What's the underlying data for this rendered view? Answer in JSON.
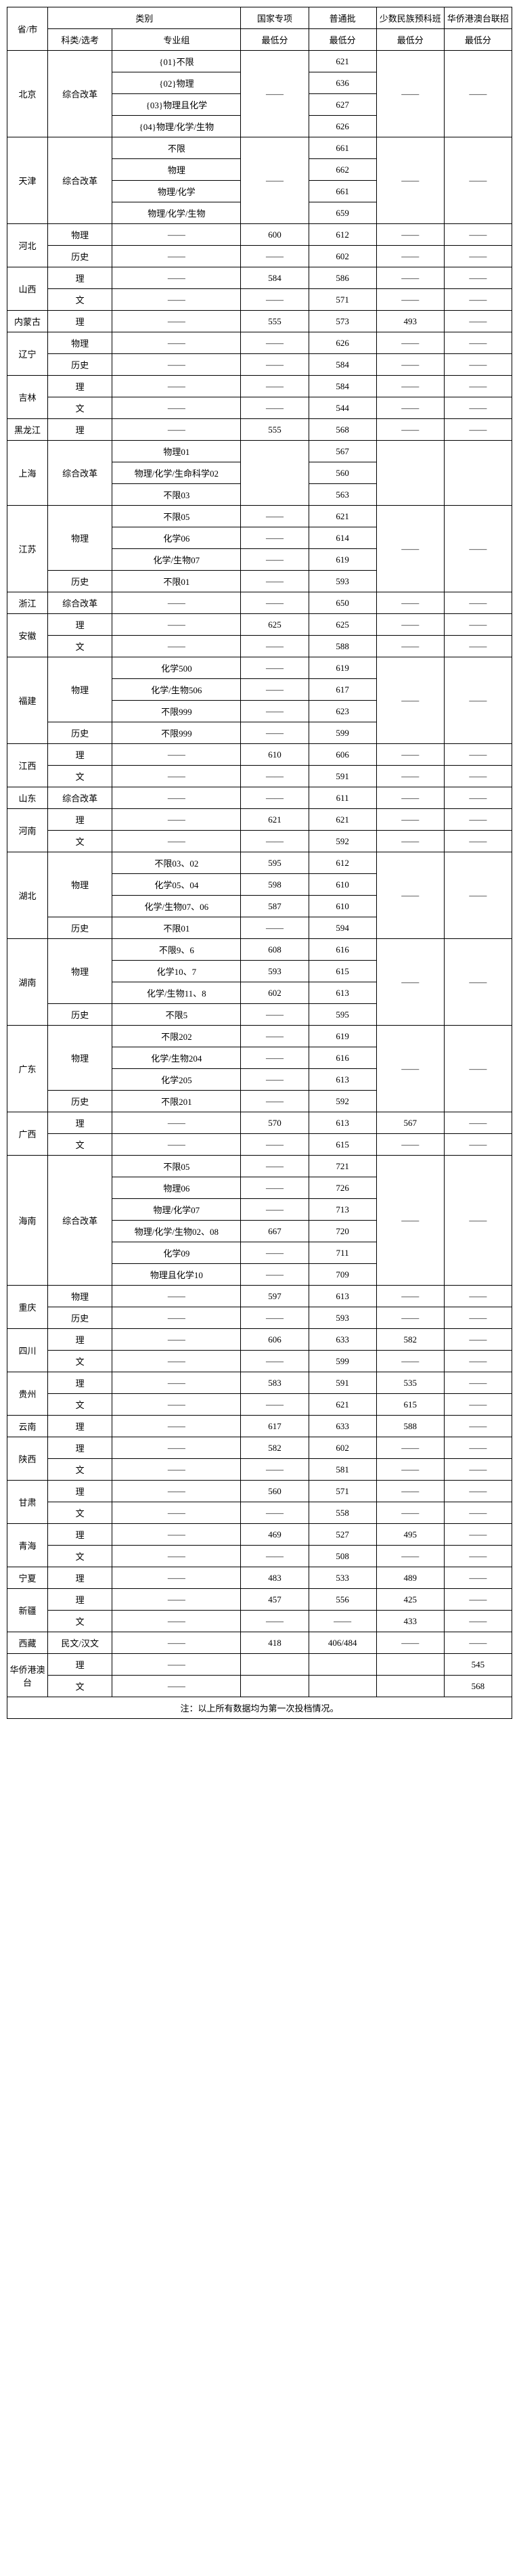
{
  "headers": {
    "province": "省/市",
    "category": "类别",
    "subject": "科类/选考",
    "group": "专业组",
    "national": "国家专项",
    "normal": "普通批",
    "minority": "少数民族预科班",
    "overseas": "华侨港澳台联招",
    "min": "最低分"
  },
  "dash": "——",
  "footnote": "注：以上所有数据均为第一次投档情况。",
  "rows": [
    {
      "prov": "北京",
      "prov_rs": 4,
      "cat1": "综合改革",
      "cat1_rs": 4,
      "cat2": "{01}不限",
      "c1": "——",
      "c1_rs": 4,
      "c2": "621",
      "c3": "——",
      "c3_rs": 4,
      "c4": "——",
      "c4_rs": 4
    },
    {
      "cat2": "{02}物理",
      "c2": "636"
    },
    {
      "cat2": "{03}物理且化学",
      "c2": "627"
    },
    {
      "cat2": "{04}物理/化学/生物",
      "c2": "626"
    },
    {
      "prov": "天津",
      "prov_rs": 4,
      "cat1": "综合改革",
      "cat1_rs": 4,
      "cat2": "不限",
      "c1": "——",
      "c1_rs": 4,
      "c2": "661",
      "c3": "——",
      "c3_rs": 4,
      "c4": "——",
      "c4_rs": 4
    },
    {
      "cat2": "物理",
      "c2": "662"
    },
    {
      "cat2": "物理/化学",
      "c2": "661"
    },
    {
      "cat2": "物理/化学/生物",
      "c2": "659"
    },
    {
      "prov": "河北",
      "prov_rs": 2,
      "cat1": "物理",
      "cat2": "——",
      "c1": "600",
      "c2": "612",
      "c3": "——",
      "c4": "——"
    },
    {
      "cat1": "历史",
      "cat2": "——",
      "c1": "——",
      "c2": "602",
      "c3": "——",
      "c4": "——"
    },
    {
      "prov": "山西",
      "prov_rs": 2,
      "cat1": "理",
      "cat2": "——",
      "c1": "584",
      "c2": "586",
      "c3": "——",
      "c4": "——"
    },
    {
      "cat1": "文",
      "cat2": "——",
      "c1": "——",
      "c2": "571",
      "c3": "——",
      "c4": "——"
    },
    {
      "prov": "内蒙古",
      "cat1": "理",
      "cat2": "——",
      "c1": "555",
      "c2": "573",
      "c3": "493",
      "c4": "——"
    },
    {
      "prov": "辽宁",
      "prov_rs": 2,
      "cat1": "物理",
      "cat2": "——",
      "c1": "——",
      "c2": "626",
      "c3": "——",
      "c4": "——"
    },
    {
      "cat1": "历史",
      "cat2": "——",
      "c1": "——",
      "c2": "584",
      "c3": "——",
      "c4": "——"
    },
    {
      "prov": "吉林",
      "prov_rs": 2,
      "cat1": "理",
      "cat2": "——",
      "c1": "——",
      "c2": "584",
      "c3": "——",
      "c4": "——"
    },
    {
      "cat1": "文",
      "cat2": "——",
      "c1": "——",
      "c2": "544",
      "c3": "——",
      "c4": "——"
    },
    {
      "prov": "黑龙江",
      "cat1": "理",
      "cat2": "——",
      "c1": "555",
      "c2": "568",
      "c3": "——",
      "c4": "——"
    },
    {
      "prov": "上海",
      "prov_rs": 3,
      "cat1": "综合改革",
      "cat1_rs": 3,
      "cat2": "物理01",
      "c1": "",
      "c1_rs": 3,
      "c2": "567",
      "c3": "",
      "c3_rs": 3,
      "c4": "",
      "c4_rs": 3
    },
    {
      "cat2": "物理/化学/生命科学02",
      "c2": "560"
    },
    {
      "cat2": "不限03",
      "c2": "563"
    },
    {
      "prov": "江苏",
      "prov_rs": 4,
      "cat1": "物理",
      "cat1_rs": 3,
      "cat2": "不限05",
      "c1": "——",
      "c2": "621",
      "c3": "——",
      "c3_rs": 4,
      "c4": "——",
      "c4_rs": 4
    },
    {
      "cat2": "化学06",
      "c1": "——",
      "c2": "614"
    },
    {
      "cat2": "化学/生物07",
      "c1": "——",
      "c2": "619"
    },
    {
      "cat1": "历史",
      "cat2": "不限01",
      "c1": "——",
      "c2": "593"
    },
    {
      "prov": "浙江",
      "cat1": "综合改革",
      "cat2": "——",
      "c1": "——",
      "c2": "650",
      "c3": "——",
      "c4": "——"
    },
    {
      "prov": "安徽",
      "prov_rs": 2,
      "cat1": "理",
      "cat2": "——",
      "c1": "625",
      "c2": "625",
      "c3": "——",
      "c4": "——"
    },
    {
      "cat1": "文",
      "cat2": "——",
      "c1": "——",
      "c2": "588",
      "c3": "——",
      "c4": "——"
    },
    {
      "prov": "福建",
      "prov_rs": 4,
      "cat1": "物理",
      "cat1_rs": 3,
      "cat2": "化学500",
      "c1": "——",
      "c2": "619",
      "c3": "——",
      "c3_rs": 4,
      "c4": "——",
      "c4_rs": 4
    },
    {
      "cat2": "化学/生物506",
      "c1": "——",
      "c2": "617"
    },
    {
      "cat2": "不限999",
      "c1": "——",
      "c2": "623"
    },
    {
      "cat1": "历史",
      "cat2": "不限999",
      "c1": "——",
      "c2": "599"
    },
    {
      "prov": "江西",
      "prov_rs": 2,
      "cat1": "理",
      "cat2": "——",
      "c1": "610",
      "c2": "606",
      "c3": "——",
      "c4": "——"
    },
    {
      "cat1": "文",
      "cat2": "——",
      "c1": "——",
      "c2": "591",
      "c3": "——",
      "c4": "——"
    },
    {
      "prov": "山东",
      "cat1": "综合改革",
      "cat2": "——",
      "c1": "——",
      "c2": "611",
      "c3": "——",
      "c4": "——"
    },
    {
      "prov": "河南",
      "prov_rs": 2,
      "cat1": "理",
      "cat2": "——",
      "c1": "621",
      "c2": "621",
      "c3": "——",
      "c4": "——"
    },
    {
      "cat1": "文",
      "cat2": "——",
      "c1": "——",
      "c2": "592",
      "c3": "——",
      "c4": "——"
    },
    {
      "prov": "湖北",
      "prov_rs": 4,
      "cat1": "物理",
      "cat1_rs": 3,
      "cat2": "不限03、02",
      "c1": "595",
      "c2": "612",
      "c3": "——",
      "c3_rs": 4,
      "c4": "——",
      "c4_rs": 4
    },
    {
      "cat2": "化学05、04",
      "c1": "598",
      "c2": "610"
    },
    {
      "cat2": "化学/生物07、06",
      "c1": "587",
      "c2": "610"
    },
    {
      "cat1": "历史",
      "cat2": "不限01",
      "c1": "——",
      "c2": "594"
    },
    {
      "prov": "湖南",
      "prov_rs": 4,
      "cat1": "物理",
      "cat1_rs": 3,
      "cat2": "不限9、6",
      "c1": "608",
      "c2": "616",
      "c3": "——",
      "c3_rs": 4,
      "c4": "——",
      "c4_rs": 4
    },
    {
      "cat2": "化学10、7",
      "c1": "593",
      "c2": "615"
    },
    {
      "cat2": "化学/生物11、8",
      "c1": "602",
      "c2": "613"
    },
    {
      "cat1": "历史",
      "cat2": "不限5",
      "c1": "——",
      "c2": "595"
    },
    {
      "prov": "广东",
      "prov_rs": 4,
      "cat1": "物理",
      "cat1_rs": 3,
      "cat2": "不限202",
      "c1": "——",
      "c2": "619",
      "c3": "——",
      "c3_rs": 4,
      "c4": "——",
      "c4_rs": 4
    },
    {
      "cat2": "化学/生物204",
      "c1": "——",
      "c2": "616"
    },
    {
      "cat2": "化学205",
      "c1": "——",
      "c2": "613"
    },
    {
      "cat1": "历史",
      "cat2": "不限201",
      "c1": "——",
      "c2": "592"
    },
    {
      "prov": "广西",
      "prov_rs": 2,
      "cat1": "理",
      "cat2": "——",
      "c1": "570",
      "c2": "613",
      "c3": "567",
      "c4": "——"
    },
    {
      "cat1": "文",
      "cat2": "——",
      "c1": "——",
      "c2": "615",
      "c3": "——",
      "c4": "——"
    },
    {
      "prov": "海南",
      "prov_rs": 6,
      "cat1": "综合改革",
      "cat1_rs": 6,
      "cat2": "不限05",
      "c1": "——",
      "c2": "721",
      "c3": "——",
      "c3_rs": 6,
      "c4": "——",
      "c4_rs": 6
    },
    {
      "cat2": "物理06",
      "c1": "——",
      "c2": "726"
    },
    {
      "cat2": "物理/化学07",
      "c1": "——",
      "c2": "713"
    },
    {
      "cat2": "物理/化学/生物02、08",
      "c1": "667",
      "c2": "720"
    },
    {
      "cat2": "化学09",
      "c1": "——",
      "c2": "711"
    },
    {
      "cat2": "物理且化学10",
      "c1": "——",
      "c2": "709"
    },
    {
      "prov": "重庆",
      "prov_rs": 2,
      "cat1": "物理",
      "cat2": "——",
      "c1": "597",
      "c2": "613",
      "c3": "——",
      "c4": "——"
    },
    {
      "cat1": "历史",
      "cat2": "——",
      "c1": "——",
      "c2": "593",
      "c3": "——",
      "c4": "——"
    },
    {
      "prov": "四川",
      "prov_rs": 2,
      "cat1": "理",
      "cat2": "——",
      "c1": "606",
      "c2": "633",
      "c3": "582",
      "c4": "——"
    },
    {
      "cat1": "文",
      "cat2": "——",
      "c1": "——",
      "c2": "599",
      "c3": "——",
      "c4": "——"
    },
    {
      "prov": "贵州",
      "prov_rs": 2,
      "cat1": "理",
      "cat2": "——",
      "c1": "583",
      "c2": "591",
      "c3": "535",
      "c4": "——"
    },
    {
      "cat1": "文",
      "cat2": "——",
      "c1": "——",
      "c2": "621",
      "c3": "615",
      "c4": "——"
    },
    {
      "prov": "云南",
      "cat1": "理",
      "cat2": "——",
      "c1": "617",
      "c2": "633",
      "c3": "588",
      "c4": "——"
    },
    {
      "prov": "陕西",
      "prov_rs": 2,
      "cat1": "理",
      "cat2": "——",
      "c1": "582",
      "c2": "602",
      "c3": "——",
      "c4": "——"
    },
    {
      "cat1": "文",
      "cat2": "——",
      "c1": "——",
      "c2": "581",
      "c3": "——",
      "c4": "——"
    },
    {
      "prov": "甘肃",
      "prov_rs": 2,
      "cat1": "理",
      "cat2": "——",
      "c1": "560",
      "c2": "571",
      "c3": "——",
      "c4": "——"
    },
    {
      "cat1": "文",
      "cat2": "——",
      "c1": "——",
      "c2": "558",
      "c3": "——",
      "c4": "——"
    },
    {
      "prov": "青海",
      "prov_rs": 2,
      "cat1": "理",
      "cat2": "——",
      "c1": "469",
      "c2": "527",
      "c3": "495",
      "c4": "——"
    },
    {
      "cat1": "文",
      "cat2": "——",
      "c1": "——",
      "c2": "508",
      "c3": "——",
      "c4": "——"
    },
    {
      "prov": "宁夏",
      "cat1": "理",
      "cat2": "——",
      "c1": "483",
      "c2": "533",
      "c3": "489",
      "c4": "——"
    },
    {
      "prov": "新疆",
      "prov_rs": 2,
      "cat1": "理",
      "cat2": "——",
      "c1": "457",
      "c2": "556",
      "c3": "425",
      "c4": "——"
    },
    {
      "cat1": "文",
      "cat2": "——",
      "c1": "——",
      "c2": "——",
      "c3": "433",
      "c4": "——"
    },
    {
      "prov": "西藏",
      "cat1": "民文/汉文",
      "cat2": "——",
      "c1": "418",
      "c2": "406/484",
      "c3": "——",
      "c4": "——"
    },
    {
      "prov": "华侨港澳台",
      "prov_rs": 2,
      "cat1": "理",
      "cat2": "——",
      "c1": "",
      "c2": "",
      "c3": "",
      "c4": "545"
    },
    {
      "cat1": "文",
      "cat2": "——",
      "c1": "",
      "c2": "",
      "c3": "",
      "c4": "568"
    }
  ]
}
